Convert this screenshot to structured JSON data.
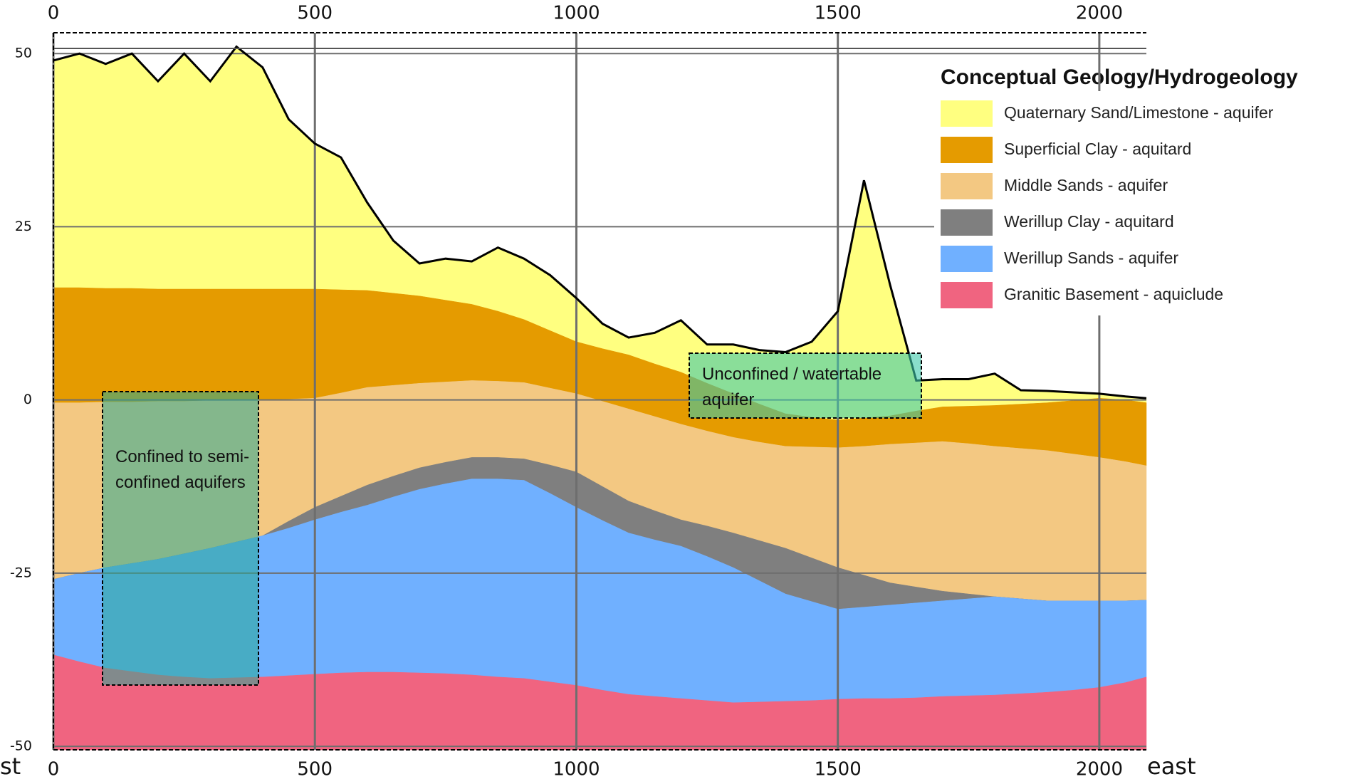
{
  "chart_data": {
    "type": "area",
    "legend_title": "Conceptual Geology/Hydrogeology",
    "x": [
      0,
      50,
      100,
      150,
      200,
      250,
      300,
      350,
      400,
      450,
      500,
      550,
      600,
      650,
      700,
      750,
      800,
      850,
      900,
      950,
      1000,
      1050,
      1100,
      1150,
      1200,
      1250,
      1300,
      1350,
      1400,
      1450,
      1500,
      1550,
      1600,
      1650,
      1700,
      1750,
      1800,
      1850,
      1900,
      1950,
      2000,
      2050,
      2090
    ],
    "xlim": [
      0,
      2090
    ],
    "xticks": [
      0,
      500,
      1000,
      1500,
      2000
    ],
    "ylim": [
      -50.5,
      53
    ],
    "yticks": [
      -50,
      -25,
      0,
      25,
      50
    ],
    "grid": true,
    "legend": "upper right",
    "x_left_label": "st",
    "x_right_label": "east",
    "annotations": [
      "Unconfined / watertable aquifer",
      "Confined to semi-confined aquifers"
    ],
    "series": [
      {
        "name": "Quaternary Sand/Limestone - aquifer",
        "color": "#ffff80",
        "values": [
          49,
          50,
          48.5,
          50,
          46,
          50,
          46,
          51,
          48,
          40.5,
          37,
          35,
          28.5,
          23,
          19.7,
          20.4,
          20,
          22,
          20.4,
          18,
          14.7,
          11,
          9,
          9.7,
          11.5,
          8,
          8,
          7.2,
          6.9,
          8.4,
          12.8,
          31.7,
          16.6,
          2.8,
          3,
          3,
          3.8,
          1.4,
          1.3,
          1.1,
          0.9,
          0.5,
          0.25
        ]
      },
      {
        "name": "Superficial Clay - aquitard",
        "color": "#e59b00",
        "values": [
          16.2,
          16.2,
          16.1,
          16.1,
          16,
          16,
          16,
          16,
          16,
          16,
          16,
          15.9,
          15.8,
          15.4,
          15,
          14.4,
          13.8,
          12.8,
          11.6,
          10,
          8.4,
          7.4,
          6.5,
          5.2,
          4,
          2.4,
          0.9,
          -0.6,
          -2,
          -2.5,
          -2.9,
          -2.6,
          -2.3,
          -1.6,
          -1,
          -0.9,
          -0.8,
          -0.6,
          -0.4,
          -0.1,
          0.25,
          0,
          -0.4
        ]
      },
      {
        "name": "Middle Sands - aquifer",
        "color": "#f3c882",
        "values": [
          -0.4,
          -0.4,
          -0.3,
          -0.3,
          -0.2,
          -0.2,
          -0.1,
          -0.1,
          0,
          0.1,
          0.25,
          1,
          1.8,
          2.1,
          2.4,
          2.6,
          2.8,
          2.7,
          2.5,
          1.7,
          0.9,
          -0.2,
          -1.3,
          -2.4,
          -3.5,
          -4.5,
          -5.4,
          -6.1,
          -6.7,
          -6.8,
          -6.9,
          -6.7,
          -6.4,
          -6.2,
          -6,
          -6.3,
          -6.7,
          -7,
          -7.3,
          -7.8,
          -8.3,
          -8.9,
          -9.5
        ]
      },
      {
        "name": "Werillup Clay - aquitard",
        "color": "#7f7f7f",
        "values": [
          -25.9,
          -25,
          -24.2,
          -23.6,
          -23,
          -22.2,
          -21.4,
          -20.5,
          -19.6,
          -17.5,
          -15.5,
          -13.9,
          -12.3,
          -11,
          -9.8,
          -9,
          -8.3,
          -8.3,
          -8.5,
          -9.4,
          -10.4,
          -12.5,
          -14.6,
          -16,
          -17.3,
          -18.2,
          -19.2,
          -20.3,
          -21.4,
          -22.8,
          -24.2,
          -25.3,
          -26.4,
          -27,
          -27.6,
          -28,
          -28.4,
          -28.7,
          -29,
          -29,
          -29,
          -29,
          -28.9
        ]
      },
      {
        "name": "Werillup Sands - aquifer",
        "color": "#70b0ff",
        "values": [
          -25.9,
          -25,
          -24.2,
          -23.6,
          -23,
          -22.2,
          -21.4,
          -20.5,
          -19.6,
          -18.5,
          -17.3,
          -16.2,
          -15.2,
          -14,
          -12.9,
          -12.1,
          -11.4,
          -11.4,
          -11.6,
          -13.5,
          -15.5,
          -17.4,
          -19.2,
          -20.2,
          -21.1,
          -22.6,
          -24.2,
          -26.1,
          -28,
          -29.1,
          -30.2,
          -29.9,
          -29.6,
          -29.3,
          -29,
          -28.7,
          -28.4,
          -28.7,
          -29,
          -29,
          -29,
          -29,
          -28.9
        ]
      },
      {
        "name": "Granitic Basement - aquiclude",
        "color": "#f06480",
        "values": [
          -36.8,
          -37.8,
          -38.7,
          -39.2,
          -39.7,
          -40,
          -40.2,
          -40.1,
          -40,
          -39.8,
          -39.6,
          -39.4,
          -39.3,
          -39.3,
          -39.4,
          -39.5,
          -39.7,
          -40,
          -40.2,
          -40.7,
          -41.2,
          -41.9,
          -42.5,
          -42.8,
          -43.1,
          -43.4,
          -43.7,
          -43.6,
          -43.5,
          -43.4,
          -43.2,
          -43.1,
          -43.1,
          -43,
          -42.8,
          -42.7,
          -42.6,
          -42.4,
          -42.2,
          -41.9,
          -41.5,
          -40.8,
          -40
        ]
      }
    ]
  }
}
